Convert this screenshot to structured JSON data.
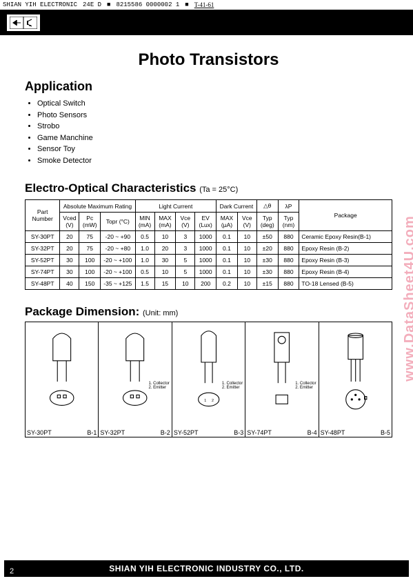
{
  "header": {
    "company": "SHIAN YIH ELECTRONIC",
    "code1": "24E D",
    "code2": "8215586 0000002 1",
    "handwritten": "T-41-61"
  },
  "title": "Photo Transistors",
  "application": {
    "heading": "Application",
    "items": [
      "Optical Switch",
      "Photo Sensors",
      "Strobo",
      "Game Manchine",
      "Sensor Toy",
      "Smoke Detector"
    ]
  },
  "characteristics": {
    "heading": "Electro-Optical Characteristics",
    "condition": "(Ta = 25°C)",
    "group_headers": {
      "part": "Part Number",
      "abs": "Absolute Maximum Rating",
      "light": "Light Current",
      "dark": "Dark Current",
      "dtheta": "△θ",
      "lp": "λP",
      "pkg": "Package"
    },
    "col_headers": {
      "vced": "Vced (V)",
      "pc": "Pc (mW)",
      "topr": "Topr (°C)",
      "min": "MIN (mA)",
      "max": "MAX (mA)",
      "vce": "Vce (V)",
      "ev": "EV (Lux)",
      "dmax": "MAX (µA)",
      "dvce": "Vce (V)",
      "typdeg": "Typ (deg)",
      "typnm": "Typ (nm)"
    },
    "rows": [
      {
        "part": "SY-30PT",
        "vced": "20",
        "pc": "75",
        "topr": "-20 ~ +90",
        "min": "0.5",
        "max": "10",
        "vce": "3",
        "ev": "1000",
        "dmax": "0.1",
        "dvce": "10",
        "typdeg": "±50",
        "typnm": "880",
        "pkg": "Ceramic Epoxy Resin(B-1)"
      },
      {
        "part": "SY-32PT",
        "vced": "20",
        "pc": "75",
        "topr": "-20 ~ +80",
        "min": "1.0",
        "max": "20",
        "vce": "3",
        "ev": "1000",
        "dmax": "0.1",
        "dvce": "10",
        "typdeg": "±20",
        "typnm": "880",
        "pkg": "Epoxy Resin (B-2)"
      },
      {
        "part": "SY-52PT",
        "vced": "30",
        "pc": "100",
        "topr": "-20 ~ +100",
        "min": "1.0",
        "max": "30",
        "vce": "5",
        "ev": "1000",
        "dmax": "0.1",
        "dvce": "10",
        "typdeg": "±30",
        "typnm": "880",
        "pkg": "Epoxy Resin (B-3)"
      },
      {
        "part": "SY-74PT",
        "vced": "30",
        "pc": "100",
        "topr": "-20 ~ +100",
        "min": "0.5",
        "max": "10",
        "vce": "5",
        "ev": "1000",
        "dmax": "0.1",
        "dvce": "10",
        "typdeg": "±30",
        "typnm": "880",
        "pkg": "Epoxy Resin (B-4)"
      },
      {
        "part": "SY-48PT",
        "vced": "40",
        "pc": "150",
        "topr": "-35 ~ +125",
        "min": "1.5",
        "max": "15",
        "vce": "10",
        "ev": "200",
        "dmax": "0.2",
        "dvce": "10",
        "typdeg": "±15",
        "typnm": "880",
        "pkg": "TO-18 Lensed (B-5)"
      }
    ]
  },
  "package_dim": {
    "heading": "Package Dimension:",
    "unit": "(Unit: mm)",
    "pin_note1": "1. Collector",
    "pin_note2": "2. Emitter",
    "cells": [
      {
        "name": "SY-30PT",
        "code": "B-1"
      },
      {
        "name": "SY-32PT",
        "code": "B-2"
      },
      {
        "name": "SY-52PT",
        "code": "B-3"
      },
      {
        "name": "SY-74PT",
        "code": "B-4"
      },
      {
        "name": "SY-48PT",
        "code": "B-5"
      }
    ]
  },
  "footer": "SHIAN YIH ELECTRONIC INDUSTRY CO., LTD.",
  "page": "2",
  "watermark": "www.DataSheet4U.com",
  "style": {
    "bg": "#ffffff",
    "text": "#000000",
    "band": "#000000",
    "watermark_color": "rgba(220,20,60,0.35)",
    "title_fontsize": 24,
    "section_fontsize": 18,
    "table_fontsize": 8.5
  }
}
